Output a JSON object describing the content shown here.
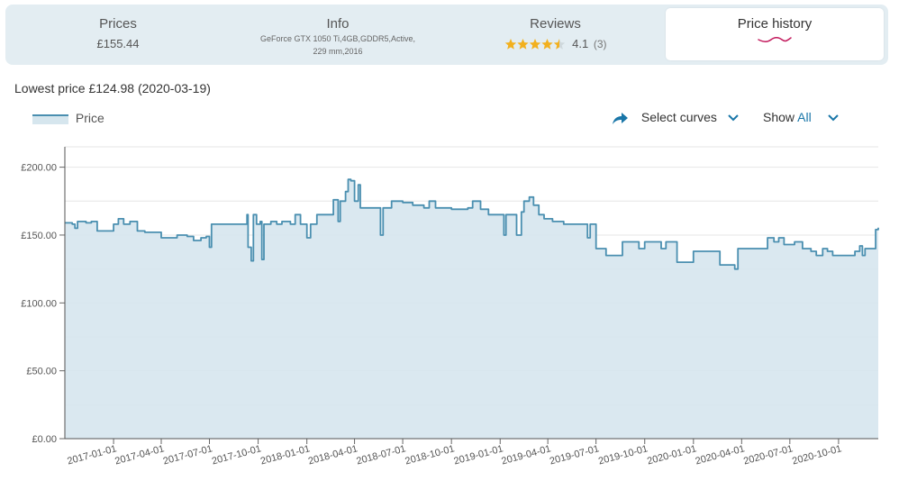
{
  "tabs": {
    "prices": {
      "title": "Prices",
      "value": "£155.44"
    },
    "info": {
      "title": "Info",
      "line1": "GeForce GTX 1050 Ti,4GB,GDDR5,Active,",
      "line2": "229 mm,2016"
    },
    "reviews": {
      "title": "Reviews",
      "rating": "4.1",
      "count": "(3)",
      "stars_filled": 4.1
    },
    "history": {
      "title": "Price history"
    }
  },
  "lowest_price": "Lowest price £124.98 (2020-03-19)",
  "legend_label": "Price",
  "controls": {
    "select_curves": "Select curves",
    "show_label": "Show",
    "show_value": "All"
  },
  "colors": {
    "line": "#4a8fb0",
    "fill": "#d6e6ee",
    "accent": "#1976a8",
    "underline": "#c2185b"
  },
  "chart_data": {
    "type": "area",
    "title": "",
    "xlabel": "",
    "ylabel": "",
    "x_range": [
      "2016-10-01",
      "2020-12-15"
    ],
    "ylim": [
      0,
      215
    ],
    "y_ticks": [
      "£0.00",
      "£50.00",
      "£100.00",
      "£150.00",
      "£200.00"
    ],
    "y_tick_values": [
      0,
      50,
      100,
      150,
      200
    ],
    "x_ticks": [
      "2017-01-01",
      "2017-04-01",
      "2017-07-01",
      "2017-10-01",
      "2018-01-01",
      "2018-04-01",
      "2018-07-01",
      "2018-10-01",
      "2019-01-01",
      "2019-04-01",
      "2019-07-01",
      "2019-10-01",
      "2020-01-01",
      "2020-04-01",
      "2020-07-01",
      "2020-10-01"
    ],
    "grid": "horizontal",
    "series": [
      {
        "name": "Price",
        "points": [
          [
            "2016-10-01",
            159
          ],
          [
            "2016-10-15",
            158
          ],
          [
            "2016-10-20",
            155
          ],
          [
            "2016-10-25",
            160
          ],
          [
            "2016-11-10",
            159
          ],
          [
            "2016-11-20",
            160
          ],
          [
            "2016-12-01",
            153
          ],
          [
            "2016-12-20",
            153
          ],
          [
            "2017-01-01",
            158
          ],
          [
            "2017-01-10",
            162
          ],
          [
            "2017-01-20",
            158
          ],
          [
            "2017-02-01",
            160
          ],
          [
            "2017-02-15",
            153
          ],
          [
            "2017-03-01",
            152
          ],
          [
            "2017-03-20",
            152
          ],
          [
            "2017-04-01",
            148
          ],
          [
            "2017-04-20",
            148
          ],
          [
            "2017-05-01",
            150
          ],
          [
            "2017-05-20",
            149
          ],
          [
            "2017-06-01",
            146
          ],
          [
            "2017-06-15",
            148
          ],
          [
            "2017-06-25",
            149
          ],
          [
            "2017-07-01",
            141
          ],
          [
            "2017-07-05",
            158
          ],
          [
            "2017-08-01",
            158
          ],
          [
            "2017-09-01",
            158
          ],
          [
            "2017-09-10",
            165
          ],
          [
            "2017-09-12",
            141
          ],
          [
            "2017-09-18",
            131
          ],
          [
            "2017-09-22",
            165
          ],
          [
            "2017-09-28",
            158
          ],
          [
            "2017-10-05",
            160
          ],
          [
            "2017-10-08",
            132
          ],
          [
            "2017-10-12",
            158
          ],
          [
            "2017-10-25",
            160
          ],
          [
            "2017-11-05",
            158
          ],
          [
            "2017-11-15",
            160
          ],
          [
            "2017-12-01",
            158
          ],
          [
            "2017-12-10",
            165
          ],
          [
            "2017-12-20",
            158
          ],
          [
            "2018-01-01",
            148
          ],
          [
            "2018-01-08",
            158
          ],
          [
            "2018-01-20",
            165
          ],
          [
            "2018-02-01",
            165
          ],
          [
            "2018-02-20",
            176
          ],
          [
            "2018-03-01",
            160
          ],
          [
            "2018-03-05",
            175
          ],
          [
            "2018-03-15",
            182
          ],
          [
            "2018-03-20",
            191
          ],
          [
            "2018-03-25",
            190
          ],
          [
            "2018-04-01",
            175
          ],
          [
            "2018-04-08",
            187
          ],
          [
            "2018-04-12",
            170
          ],
          [
            "2018-05-01",
            170
          ],
          [
            "2018-05-20",
            150
          ],
          [
            "2018-05-25",
            170
          ],
          [
            "2018-06-10",
            175
          ],
          [
            "2018-07-01",
            174
          ],
          [
            "2018-07-20",
            172
          ],
          [
            "2018-08-10",
            170
          ],
          [
            "2018-08-20",
            175
          ],
          [
            "2018-09-01",
            170
          ],
          [
            "2018-10-01",
            169
          ],
          [
            "2018-11-01",
            170
          ],
          [
            "2018-11-10",
            175
          ],
          [
            "2018-11-25",
            169
          ],
          [
            "2018-12-10",
            165
          ],
          [
            "2018-12-20",
            165
          ],
          [
            "2019-01-01",
            165
          ],
          [
            "2019-01-08",
            150
          ],
          [
            "2019-01-12",
            165
          ],
          [
            "2019-02-01",
            150
          ],
          [
            "2019-02-10",
            167
          ],
          [
            "2019-02-15",
            175
          ],
          [
            "2019-02-25",
            178
          ],
          [
            "2019-03-05",
            172
          ],
          [
            "2019-03-15",
            165
          ],
          [
            "2019-03-25",
            162
          ],
          [
            "2019-04-10",
            160
          ],
          [
            "2019-05-01",
            158
          ],
          [
            "2019-05-20",
            158
          ],
          [
            "2019-06-01",
            158
          ],
          [
            "2019-06-15",
            148
          ],
          [
            "2019-06-20",
            158
          ],
          [
            "2019-07-01",
            140
          ],
          [
            "2019-07-10",
            140
          ],
          [
            "2019-07-20",
            135
          ],
          [
            "2019-08-10",
            135
          ],
          [
            "2019-08-20",
            145
          ],
          [
            "2019-09-10",
            145
          ],
          [
            "2019-09-20",
            140
          ],
          [
            "2019-10-01",
            145
          ],
          [
            "2019-10-20",
            145
          ],
          [
            "2019-11-01",
            140
          ],
          [
            "2019-11-10",
            145
          ],
          [
            "2019-12-01",
            130
          ],
          [
            "2019-12-25",
            130
          ],
          [
            "2020-01-01",
            138
          ],
          [
            "2020-02-10",
            138
          ],
          [
            "2020-02-20",
            128
          ],
          [
            "2020-03-10",
            128
          ],
          [
            "2020-03-19",
            124.98
          ],
          [
            "2020-03-25",
            140
          ],
          [
            "2020-04-20",
            140
          ],
          [
            "2020-05-10",
            140
          ],
          [
            "2020-05-20",
            148
          ],
          [
            "2020-06-01",
            145
          ],
          [
            "2020-06-10",
            148
          ],
          [
            "2020-06-20",
            143
          ],
          [
            "2020-07-10",
            145
          ],
          [
            "2020-07-25",
            140
          ],
          [
            "2020-08-10",
            138
          ],
          [
            "2020-08-20",
            135
          ],
          [
            "2020-09-01",
            140
          ],
          [
            "2020-09-10",
            138
          ],
          [
            "2020-09-20",
            135
          ],
          [
            "2020-10-20",
            135
          ],
          [
            "2020-11-01",
            138
          ],
          [
            "2020-11-10",
            142
          ],
          [
            "2020-11-15",
            135
          ],
          [
            "2020-11-20",
            140
          ],
          [
            "2020-12-05",
            140
          ],
          [
            "2020-12-10",
            154
          ],
          [
            "2020-12-15",
            155.44
          ]
        ]
      }
    ]
  }
}
